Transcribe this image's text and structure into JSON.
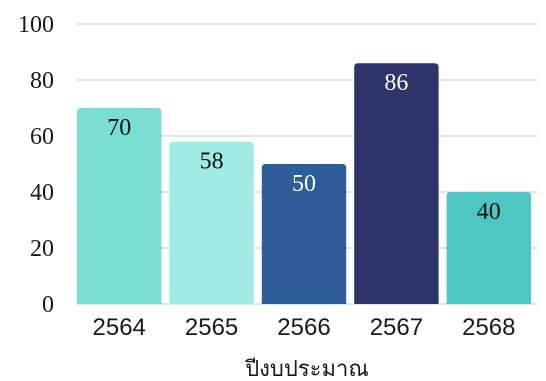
{
  "chart_data": {
    "type": "bar",
    "categories": [
      "2564",
      "2565",
      "2566",
      "2567",
      "2568"
    ],
    "values": [
      70,
      58,
      50,
      86,
      40
    ],
    "xlabel": "ปีงบประมาณ",
    "ylabel": "",
    "ylim": [
      0,
      100
    ],
    "yticks": [
      0,
      20,
      40,
      60,
      80,
      100
    ],
    "grid": true,
    "legend": "none",
    "colors": [
      "#79dfd2",
      "#a0ece4",
      "#2e5e98",
      "#2e336a",
      "#4ec7c3"
    ],
    "label_colors": [
      "#111111",
      "#111111",
      "#ffffff",
      "#ffffff",
      "#111111"
    ]
  }
}
